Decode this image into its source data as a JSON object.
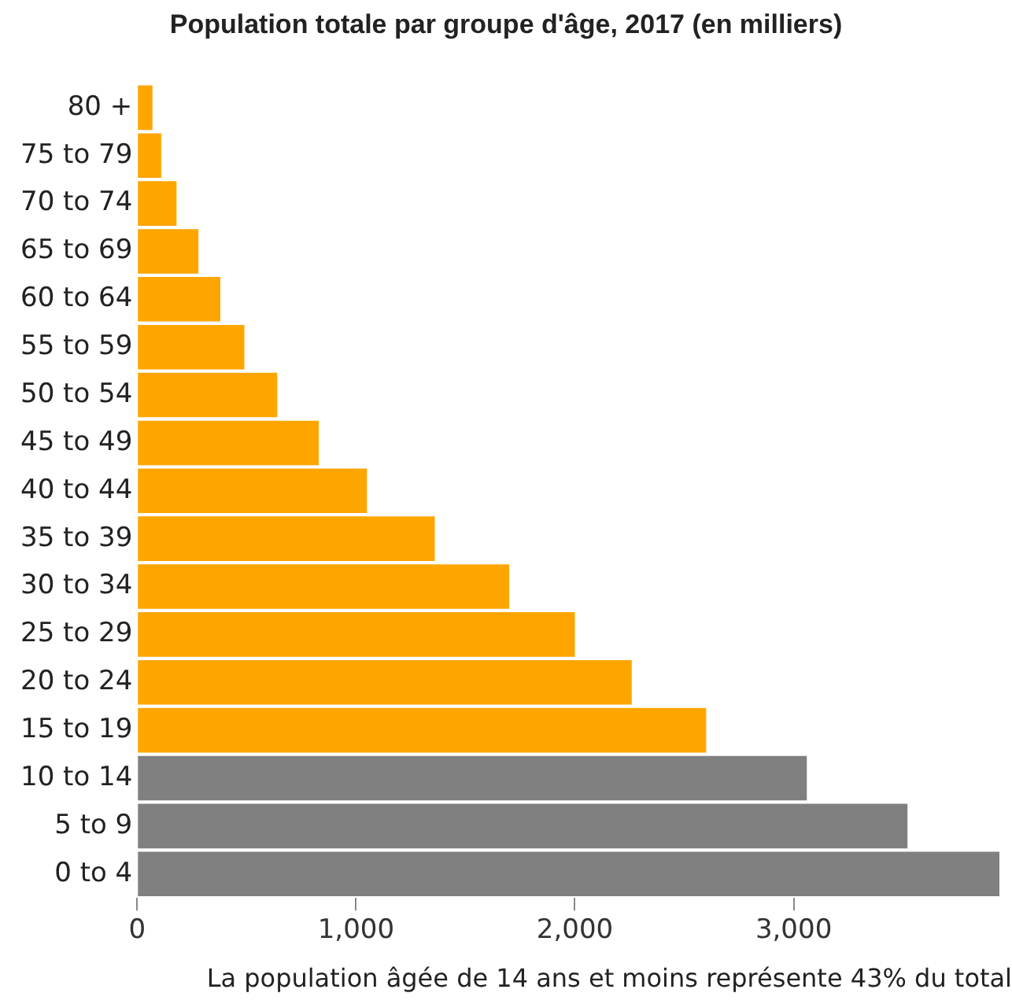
{
  "chart_data": {
    "type": "bar",
    "orientation": "horizontal",
    "title": "Population totale par groupe d'âge, 2017 (en milliers)",
    "categories": [
      "80 +",
      "75 to 79",
      "70 to 74",
      "65 to 69",
      "60 to 64",
      "55 to 59",
      "50 to 54",
      "45 to 49",
      "40 to 44",
      "35 to 39",
      "30 to 34",
      "25 to 29",
      "20 to 24",
      "15 to 19",
      "10 to 14",
      "5 to 9",
      "0 to 4"
    ],
    "values": [
      70,
      110,
      180,
      280,
      380,
      490,
      640,
      830,
      1050,
      1360,
      1700,
      2000,
      2260,
      2600,
      3060,
      3520,
      3940
    ],
    "colors": [
      "#ffa500",
      "#ffa500",
      "#ffa500",
      "#ffa500",
      "#ffa500",
      "#ffa500",
      "#ffa500",
      "#ffa500",
      "#ffa500",
      "#ffa500",
      "#ffa500",
      "#ffa500",
      "#ffa500",
      "#ffa500",
      "#808080",
      "#808080",
      "#808080"
    ],
    "xlim": [
      0,
      3940
    ],
    "xticks": [
      {
        "value": 0,
        "label": "0"
      },
      {
        "value": 1000,
        "label": "1,000"
      },
      {
        "value": 2000,
        "label": "2,000"
      },
      {
        "value": 3000,
        "label": "3,000"
      }
    ],
    "grid": false,
    "legend": false,
    "annotations": [
      "La population âgée de 14 ans et moins représente 43% du total"
    ]
  }
}
